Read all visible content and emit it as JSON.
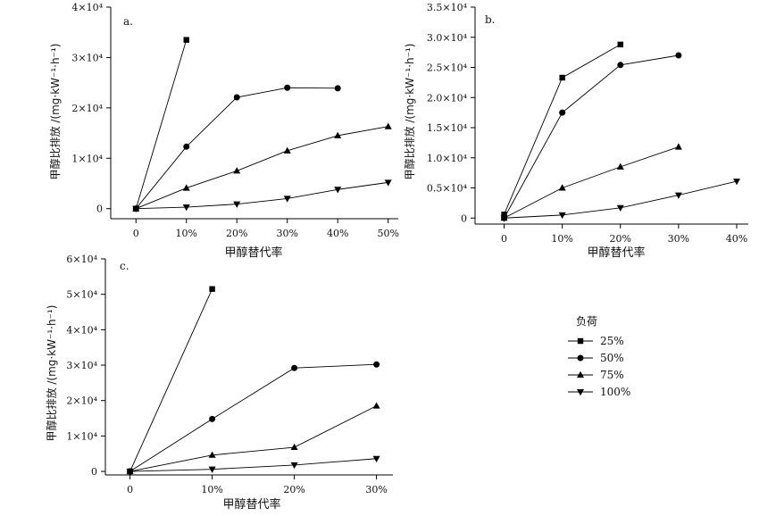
{
  "legend": {
    "title": "负荷",
    "entries": [
      {
        "label": "25%",
        "marker": "square"
      },
      {
        "label": "50%",
        "marker": "circle"
      },
      {
        "label": "75%",
        "marker": "triangle-up"
      },
      {
        "label": "100%",
        "marker": "triangle-down"
      }
    ]
  },
  "chart_data": [
    {
      "type": "line",
      "panel_label": "a.",
      "xlabel": "甲醇替代率",
      "ylabel": "甲醇比排放 /(mg·kW⁻¹·h⁻¹)",
      "x_ticks": [
        "0",
        "10%",
        "20%",
        "30%",
        "40%",
        "50%"
      ],
      "y_ticks": [
        "0",
        "1×10⁴",
        "2×10⁴",
        "3×10⁴",
        "4×10⁴"
      ],
      "xlim": [
        -0.05,
        0.52
      ],
      "ylim": [
        -2000,
        40000
      ],
      "series": [
        {
          "name": "25%",
          "marker": "square",
          "x": [
            0,
            0.1
          ],
          "y": [
            0,
            33500
          ]
        },
        {
          "name": "50%",
          "marker": "circle",
          "x": [
            0,
            0.1,
            0.2,
            0.3,
            0.4
          ],
          "y": [
            0,
            12300,
            22100,
            24000,
            23900
          ]
        },
        {
          "name": "75%",
          "marker": "triangle-up",
          "x": [
            0,
            0.1,
            0.2,
            0.3,
            0.4,
            0.5
          ],
          "y": [
            0,
            4100,
            7500,
            11500,
            14500,
            16300
          ]
        },
        {
          "name": "100%",
          "marker": "triangle-down",
          "x": [
            0,
            0.1,
            0.2,
            0.3,
            0.4,
            0.5
          ],
          "y": [
            0,
            300,
            900,
            2000,
            3800,
            5200
          ]
        }
      ]
    },
    {
      "type": "line",
      "panel_label": "b.",
      "xlabel": "甲醇替代率",
      "ylabel": "甲醇比排放 /(mg·kW⁻¹·h⁻¹)",
      "x_ticks": [
        "0",
        "10%",
        "20%",
        "30%",
        "40%"
      ],
      "y_ticks": [
        "0",
        "0.5×10⁴",
        "1.0×10⁴",
        "1.5×10⁴",
        "2.0×10⁴",
        "2.5×10⁴",
        "3.0×10⁴",
        "3.5×10⁴"
      ],
      "xlim": [
        -0.05,
        0.42
      ],
      "ylim": [
        -1000,
        35000
      ],
      "series": [
        {
          "name": "25%",
          "marker": "square",
          "x": [
            0,
            0.1,
            0.2
          ],
          "y": [
            600,
            23300,
            28800
          ]
        },
        {
          "name": "50%",
          "marker": "circle",
          "x": [
            0,
            0.1,
            0.2,
            0.3
          ],
          "y": [
            0,
            17500,
            25400,
            27000
          ]
        },
        {
          "name": "75%",
          "marker": "triangle-up",
          "x": [
            0,
            0.1,
            0.2,
            0.3
          ],
          "y": [
            0,
            5000,
            8500,
            11800
          ]
        },
        {
          "name": "100%",
          "marker": "triangle-down",
          "x": [
            0,
            0.1,
            0.2,
            0.3,
            0.4
          ],
          "y": [
            0,
            500,
            1700,
            3800,
            6100
          ]
        }
      ]
    },
    {
      "type": "line",
      "panel_label": "c.",
      "xlabel": "甲醇替代率",
      "ylabel": "甲醇比排放 /(mg·kW⁻¹·h⁻¹)",
      "x_ticks": [
        "0",
        "10%",
        "20%",
        "30%"
      ],
      "y_ticks": [
        "0",
        "1×10⁴",
        "2×10⁴",
        "3×10⁴",
        "4×10⁴",
        "5×10⁴",
        "6×10⁴"
      ],
      "xlim": [
        -0.03,
        0.32
      ],
      "ylim": [
        -1000,
        60000
      ],
      "series": [
        {
          "name": "25%",
          "marker": "square",
          "x": [
            0,
            0.1
          ],
          "y": [
            0,
            51500
          ]
        },
        {
          "name": "50%",
          "marker": "circle",
          "x": [
            0,
            0.1,
            0.2,
            0.3
          ],
          "y": [
            0,
            14800,
            29200,
            30200
          ]
        },
        {
          "name": "75%",
          "marker": "triangle-up",
          "x": [
            0,
            0.1,
            0.2,
            0.3
          ],
          "y": [
            0,
            4600,
            6800,
            18500
          ]
        },
        {
          "name": "100%",
          "marker": "triangle-down",
          "x": [
            0,
            0.1,
            0.2,
            0.3
          ],
          "y": [
            0,
            600,
            1800,
            3600
          ]
        }
      ]
    }
  ]
}
